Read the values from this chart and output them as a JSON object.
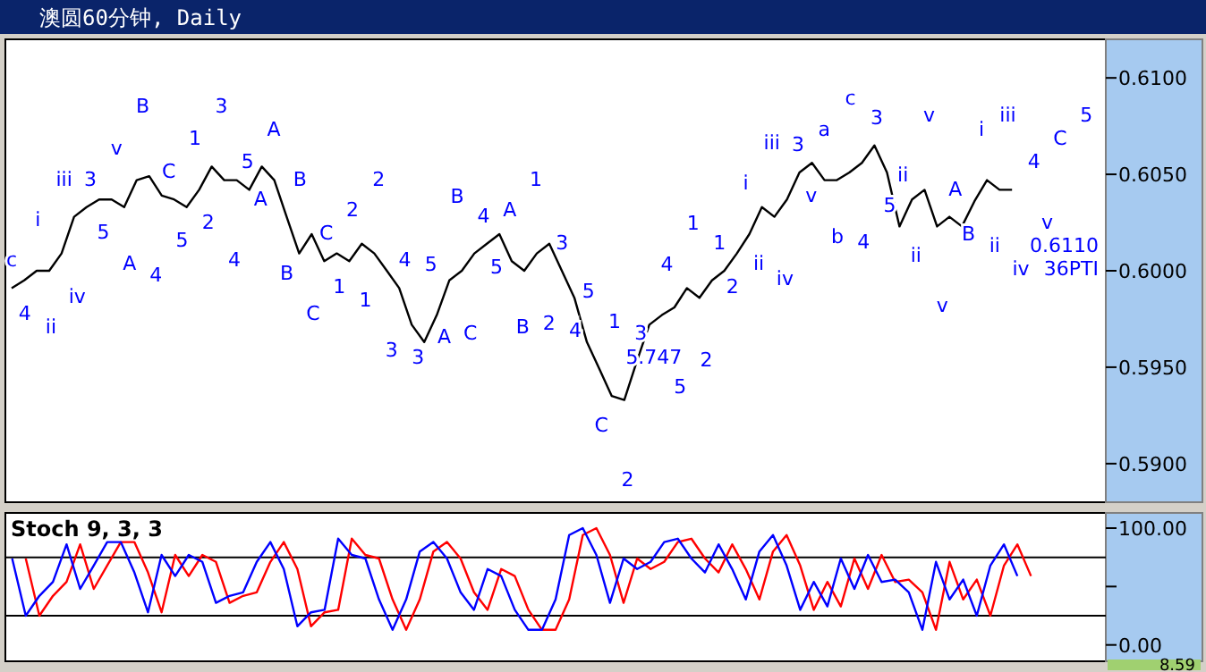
{
  "chart_data": [
    {
      "type": "line",
      "title": "澳圆60分钟, Daily",
      "categories": [
        null,
        null,
        null,
        null,
        null,
        null,
        null,
        null,
        null,
        null,
        null,
        null,
        null,
        null,
        null,
        null,
        null,
        null,
        null,
        null,
        null,
        null,
        null,
        null,
        null,
        null,
        null,
        null,
        null,
        null,
        null,
        null,
        null,
        null,
        null,
        null,
        null,
        null,
        null,
        null,
        null,
        null,
        null,
        null,
        null,
        null,
        null,
        null,
        null,
        null,
        null,
        null,
        null,
        null,
        null,
        null,
        null,
        null,
        null,
        null,
        null,
        null,
        null,
        null,
        null,
        null,
        null,
        null,
        null,
        null,
        null,
        null,
        null,
        null,
        null,
        null,
        null,
        null,
        null,
        null,
        null,
        null,
        null,
        null,
        null,
        null,
        null,
        null
      ],
      "ylim": [
        0.588,
        0.612
      ],
      "yticks": [
        {
          "value": 0.59,
          "label": "0.5900"
        },
        {
          "value": 0.595,
          "label": "0.5950"
        },
        {
          "value": 0.6,
          "label": "0.6000"
        },
        {
          "value": 0.605,
          "label": "0.6050"
        },
        {
          "value": 0.61,
          "label": "0.6100"
        }
      ],
      "series": [
        {
          "color": "#000000",
          "values": [
            0.5991,
            0.5995,
            0.6,
            0.6,
            0.6009,
            0.6028,
            0.6033,
            0.6037,
            0.6037,
            0.6033,
            0.6047,
            0.6049,
            0.6039,
            0.6037,
            0.6033,
            0.6042,
            0.6054,
            0.6047,
            0.6047,
            0.6042,
            0.6054,
            0.6047,
            0.6028,
            0.6009,
            0.6019,
            0.6005,
            0.6009,
            0.6005,
            0.6014,
            0.6009,
            0.6,
            0.5991,
            0.5972,
            0.5963,
            0.5977,
            0.5995,
            0.6,
            0.6009,
            0.6014,
            0.6019,
            0.6005,
            0.6,
            0.6009,
            0.6014,
            0.6,
            0.5986,
            0.5963,
            0.5949,
            0.5935,
            0.5933,
            0.5953,
            0.5972,
            0.5977,
            0.5981,
            0.5991,
            0.5986,
            0.5995,
            0.6,
            0.6009,
            0.6019,
            0.6033,
            0.6028,
            0.6037,
            0.6051,
            0.6056,
            0.6047,
            0.6047,
            0.6051,
            0.6056,
            0.6065,
            0.6051,
            0.6023,
            0.6037,
            0.6042,
            0.6023,
            0.6028,
            0.6023,
            0.6036,
            0.6047,
            0.6042,
            0.6042,
            null,
            null,
            null,
            null,
            null,
            null,
            null
          ]
        }
      ],
      "annotations": [
        "c",
        "4",
        "i",
        "ii",
        "iii",
        "iv",
        "3",
        "5",
        "v",
        "A",
        "B",
        "4",
        "C",
        "5",
        "1",
        "2",
        "3",
        "4",
        "5",
        "A",
        "A",
        "B",
        "B",
        "C",
        "C",
        "1",
        "2",
        "1",
        "2",
        "3",
        "4",
        "3",
        "5",
        "A",
        "B",
        "C",
        "4",
        "5",
        "A",
        "B",
        "1",
        "2",
        "3",
        "4",
        "5",
        "C",
        "1",
        "2",
        "3",
        "5.747",
        "4",
        "5",
        "1",
        "2",
        "1",
        "2",
        "i",
        "ii",
        "iii",
        "iv",
        "3",
        "v",
        "a",
        "b",
        "c",
        "4",
        "3",
        "5",
        "ii",
        "ii",
        "v",
        "v",
        "A",
        "B",
        "i",
        "ii",
        "iii",
        "iv",
        "4",
        "v",
        "C",
        "0.6110",
        "5",
        "36PTI"
      ]
    },
    {
      "type": "line",
      "title": "Stoch 9, 3, 3",
      "categories": [
        null,
        null,
        null,
        null,
        null,
        null,
        null,
        null,
        null,
        null,
        null,
        null,
        null,
        null,
        null,
        null,
        null,
        null,
        null,
        null,
        null,
        null,
        null,
        null,
        null,
        null,
        null,
        null,
        null,
        null,
        null,
        null,
        null,
        null,
        null,
        null,
        null,
        null,
        null,
        null,
        null,
        null,
        null,
        null,
        null,
        null,
        null,
        null,
        null,
        null,
        null,
        null,
        null,
        null,
        null,
        null,
        null,
        null,
        null,
        null,
        null,
        null,
        null,
        null,
        null,
        null,
        null,
        null,
        null,
        null,
        null,
        null,
        null,
        null,
        null,
        null,
        null,
        null,
        null,
        null,
        null
      ],
      "ylim": [
        -14,
        113
      ],
      "yticks": [
        {
          "value": 0,
          "label": "0.00"
        },
        {
          "value": 50,
          "label": null
        },
        {
          "value": 100,
          "label": "100.00"
        }
      ],
      "ref_lines": [
        {
          "axis": "y",
          "value": 75,
          "color": "#000000"
        },
        {
          "axis": "y",
          "value": 25,
          "color": "#000000"
        }
      ],
      "annotations": [
        "8.59"
      ],
      "series": [
        {
          "color": "#ff0000",
          "values": [
            null,
            74,
            25,
            42,
            54,
            86,
            48,
            68,
            88,
            88,
            62,
            28,
            77,
            59,
            77,
            71,
            36,
            42,
            45,
            71,
            88,
            65,
            16,
            28,
            30,
            91,
            77,
            74,
            39,
            13,
            39,
            80,
            88,
            74,
            45,
            30,
            65,
            59,
            30,
            13,
            13,
            39,
            94,
            100,
            77,
            36,
            74,
            65,
            71,
            88,
            91,
            74,
            62,
            86,
            65,
            39,
            80,
            94,
            68,
            30,
            54,
            33,
            74,
            48,
            77,
            54,
            56,
            45,
            13,
            71,
            39,
            56,
            25,
            68,
            86,
            59,
            null,
            null,
            null,
            null,
            null
          ]
        },
        {
          "color": "#0000ff",
          "values": [
            74,
            25,
            42,
            54,
            86,
            48,
            68,
            88,
            88,
            62,
            28,
            77,
            59,
            77,
            71,
            36,
            42,
            45,
            71,
            88,
            65,
            16,
            28,
            30,
            91,
            77,
            74,
            39,
            13,
            39,
            80,
            88,
            74,
            45,
            30,
            65,
            59,
            30,
            13,
            13,
            39,
            94,
            100,
            77,
            36,
            74,
            65,
            71,
            88,
            91,
            74,
            62,
            86,
            65,
            39,
            80,
            94,
            68,
            30,
            54,
            33,
            74,
            48,
            77,
            54,
            56,
            45,
            13,
            71,
            39,
            56,
            25,
            68,
            86,
            59,
            null,
            null,
            null,
            null,
            null,
            null
          ]
        }
      ]
    }
  ]
}
